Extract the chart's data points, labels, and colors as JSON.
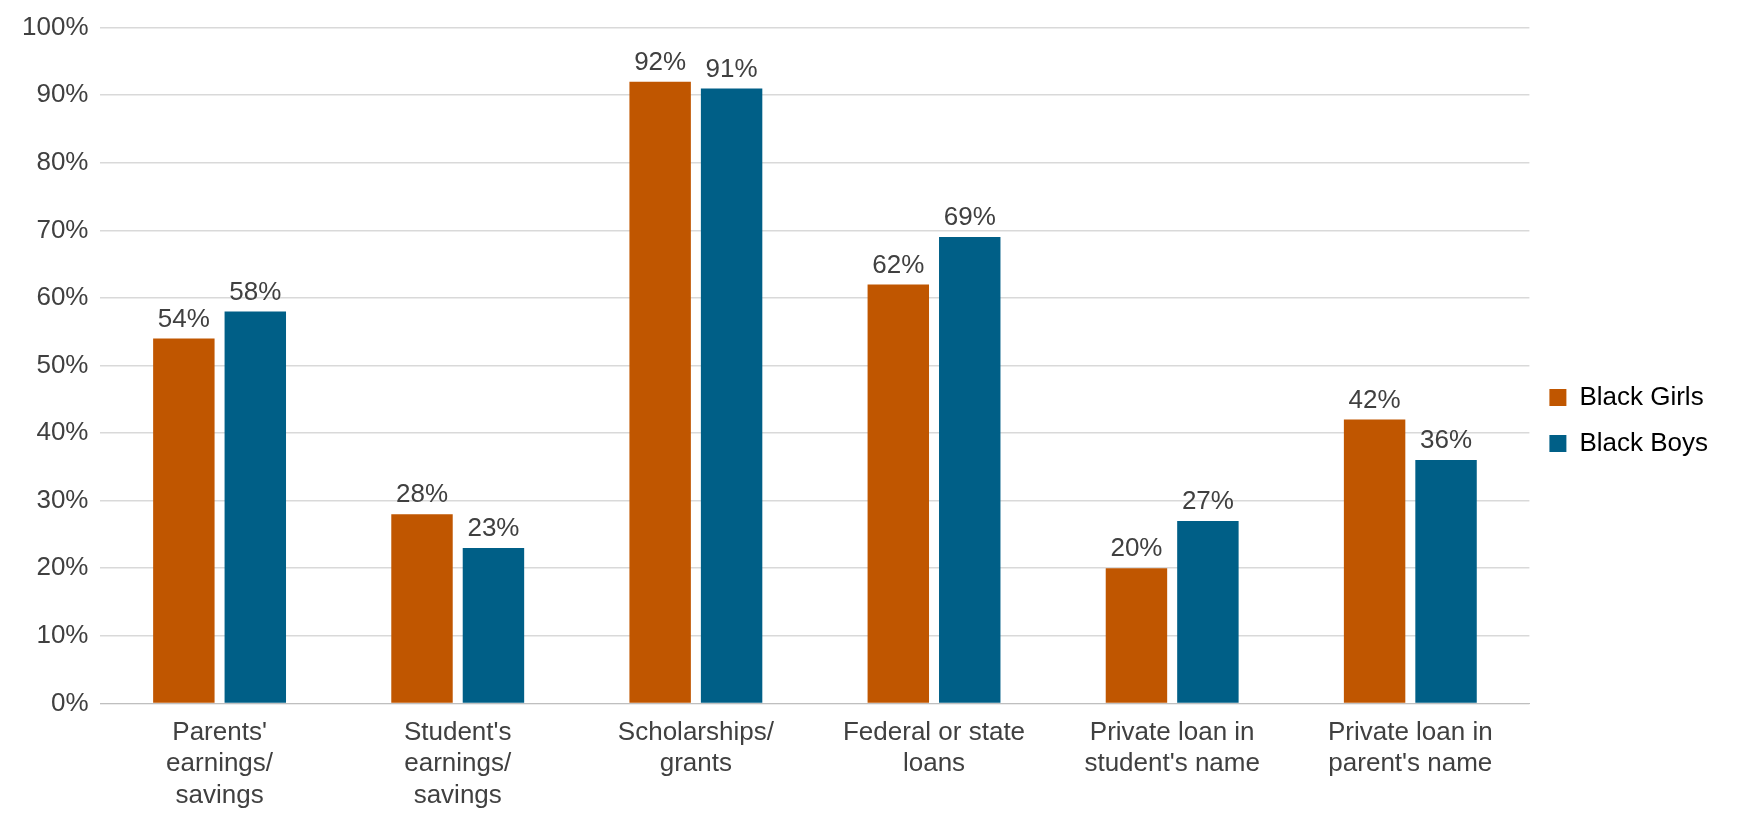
{
  "chart_data": {
    "type": "bar",
    "categories": [
      "Parents' earnings/ savings",
      "Student's earnings/ savings",
      "Scholarships/ grants",
      "Federal or state loans",
      "Private loan in student's name",
      "Private loan in parent's name"
    ],
    "series": [
      {
        "name": "Black Girls",
        "color": "#c05600",
        "values": [
          54,
          28,
          92,
          62,
          20,
          42
        ],
        "value_labels": [
          "54%",
          "28%",
          "92%",
          "62%",
          "20%",
          "42%"
        ]
      },
      {
        "name": "Black Boys",
        "color": "#005f87",
        "values": [
          58,
          23,
          91,
          69,
          27,
          36
        ],
        "value_labels": [
          "58%",
          "23%",
          "91%",
          "69%",
          "27%",
          "36%"
        ]
      }
    ],
    "ylim": [
      0,
      100
    ],
    "yticks": [
      {
        "value": 0,
        "label": "0%"
      },
      {
        "value": 10,
        "label": "10%"
      },
      {
        "value": 20,
        "label": "20%"
      },
      {
        "value": 30,
        "label": "30%"
      },
      {
        "value": 40,
        "label": "40%"
      },
      {
        "value": 50,
        "label": "50%"
      },
      {
        "value": 60,
        "label": "60%"
      },
      {
        "value": 70,
        "label": "70%"
      },
      {
        "value": 80,
        "label": "80%"
      },
      {
        "value": 90,
        "label": "90%"
      },
      {
        "value": 100,
        "label": "100%"
      }
    ],
    "grid": "y",
    "legend": "right"
  }
}
